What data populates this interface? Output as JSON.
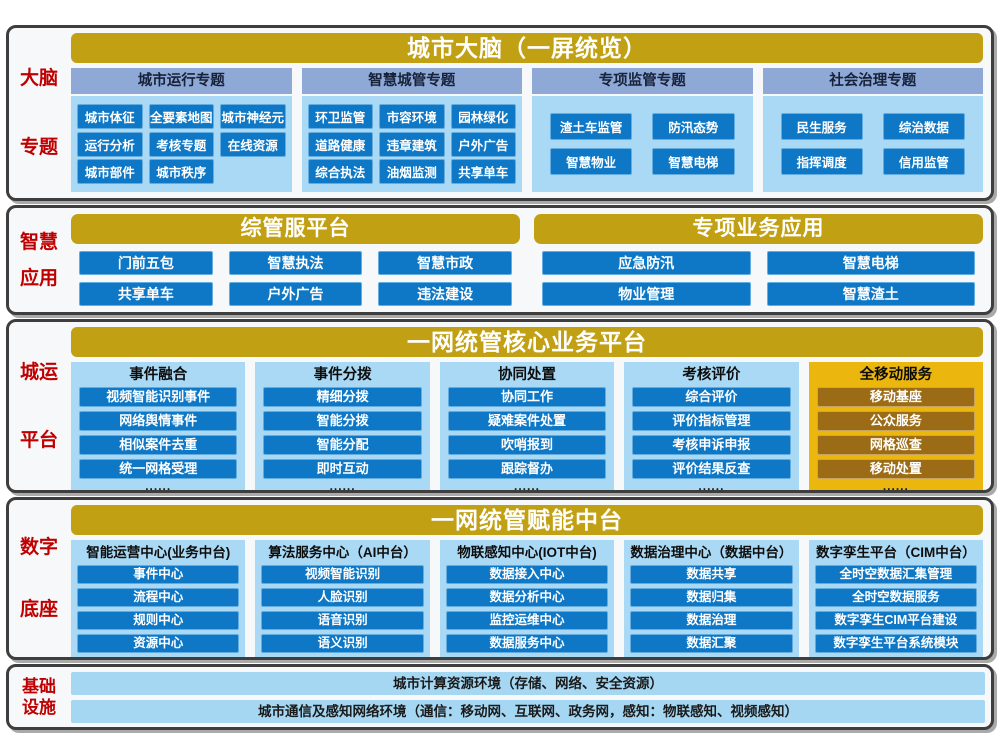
{
  "colors": {
    "gold_header": "#c2a013",
    "panel_light_blue": "#a9d9f4",
    "button_blue": "#0e78c6",
    "group_header_slate": "#8fa9d6",
    "side_label_red": "#c00000",
    "mobile_panel_gold": "#ebb70e",
    "mobile_button_brown": "#9c6b15"
  },
  "s1": {
    "side": [
      "大脑",
      "专题"
    ],
    "header": "城市大脑（一屏统览）",
    "groups": [
      {
        "title": "城市运行专题",
        "rows": [
          [
            "城市体征",
            "全要素地图",
            "城市神经元"
          ],
          [
            "运行分析",
            "考核专题",
            "在线资源"
          ],
          [
            "城市部件",
            "城市秩序"
          ]
        ]
      },
      {
        "title": "智慧城管专题",
        "rows": [
          [
            "环卫监管",
            "市容环境",
            "园林绿化"
          ],
          [
            "道路健康",
            "违章建筑",
            "户外广告"
          ],
          [
            "综合执法",
            "油烟监测",
            "共享单车"
          ]
        ]
      },
      {
        "title": "专项监管专题",
        "rows": [
          [
            "渣土车监管",
            "防汛态势"
          ],
          [
            "智慧物业",
            "智慧电梯"
          ]
        ]
      },
      {
        "title": "社会治理专题",
        "rows": [
          [
            "民生服务",
            "综治数据"
          ],
          [
            "指挥调度",
            "信用监管"
          ]
        ]
      }
    ]
  },
  "s2": {
    "side": [
      "智慧",
      "应用"
    ],
    "panels": [
      {
        "header": "综管服平台",
        "rows": [
          [
            "门前五包",
            "智慧执法",
            "智慧市政"
          ],
          [
            "共享单车",
            "户外广告",
            "违法建设"
          ]
        ]
      },
      {
        "header": "专项业务应用",
        "rows": [
          [
            "应急防汛",
            "智慧电梯"
          ],
          [
            "物业管理",
            "智慧渣土"
          ]
        ]
      }
    ]
  },
  "s3": {
    "side": [
      "城运",
      "平台"
    ],
    "header": "一网统管核心业务平台",
    "columns": [
      {
        "title": "事件融合",
        "items": [
          "视频智能识别事件",
          "网络舆情事件",
          "相似案件去重",
          "统一网格受理"
        ],
        "more": "......"
      },
      {
        "title": "事件分拨",
        "items": [
          "精细分拨",
          "智能分拨",
          "智能分配",
          "即时互动"
        ],
        "more": "......"
      },
      {
        "title": "协同处置",
        "items": [
          "协同工作",
          "疑难案件处置",
          "吹哨报到",
          "跟踪督办"
        ],
        "more": "......"
      },
      {
        "title": "考核评价",
        "items": [
          "综合评价",
          "评价指标管理",
          "考核申诉申报",
          "评价结果反查"
        ],
        "more": "......"
      },
      {
        "title": "全移动服务",
        "items": [
          "移动基座",
          "公众服务",
          "网格巡查",
          "移动处置"
        ],
        "more": "......"
      }
    ]
  },
  "s4": {
    "side": [
      "数字",
      "底座"
    ],
    "header": "一网统管赋能中台",
    "columns": [
      {
        "title": "智能运营中心(业务中台)",
        "items": [
          "事件中心",
          "流程中心",
          "规则中心",
          "资源中心"
        ]
      },
      {
        "title": "算法服务中心（AI中台）",
        "items": [
          "视频智能识别",
          "人脸识别",
          "语音识别",
          "语义识别"
        ]
      },
      {
        "title": "物联感知中心(IOT中台)",
        "items": [
          "数据接入中心",
          "数据分析中心",
          "监控运维中心",
          "数据服务中心"
        ]
      },
      {
        "title": "数据治理中心（数据中台）",
        "items": [
          "数据共享",
          "数据归集",
          "数据治理",
          "数据汇聚"
        ]
      },
      {
        "title": "数字孪生平台（CIM中台）",
        "items": [
          "全时空数据汇集管理",
          "全时空数据服务",
          "数字孪生CIM平台建设",
          "数字孪生平台系统模块"
        ]
      }
    ]
  },
  "s5": {
    "side": [
      "基础",
      "设施"
    ],
    "bars": [
      "城市计算资源环境（存储、网络、安全资源）",
      "城市通信及感知网络环境（通信：移动网、互联网、政务网，感知：物联感知、视频感知）"
    ]
  }
}
